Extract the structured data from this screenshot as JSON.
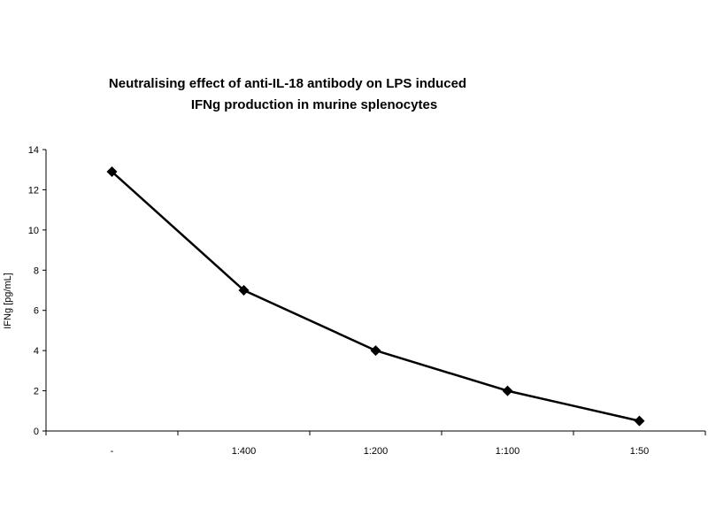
{
  "chart_data": {
    "type": "line",
    "title_lines": [
      "Neutralising effect of anti-IL-18 antibody on LPS induced",
      "IFNg production in murine splenocytes"
    ],
    "xlabel": "",
    "ylabel": "IFNg [pg/mL]",
    "categories": [
      "-",
      "1:400",
      "1:200",
      "1:100",
      "1:50"
    ],
    "series": [
      {
        "values": [
          12.9,
          7.0,
          4.0,
          2.0,
          0.5
        ]
      }
    ],
    "ylim": [
      0,
      14
    ],
    "yticks": [
      0,
      2,
      4,
      6,
      8,
      10,
      12,
      14
    ],
    "grid": false,
    "legend": "none",
    "line_color": "#000000",
    "marker": "diamond"
  }
}
